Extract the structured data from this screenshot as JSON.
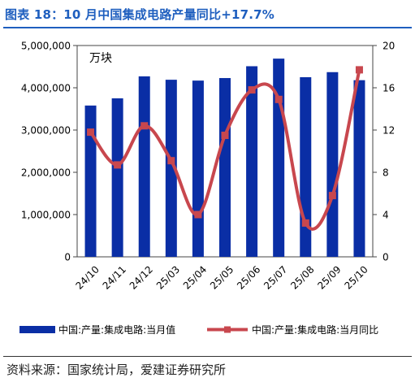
{
  "header": {
    "title": "图表 18：10 月中国集成电路产量同比+17.7%"
  },
  "footer": {
    "source": "资料来源：国家统计局，爱建证券研究所"
  },
  "colors": {
    "bar": "#0a2ea5",
    "line": "#c8474e",
    "title": "#1f5fbf"
  },
  "chart_data": {
    "type": "bar",
    "title": "",
    "unit_label": "万块",
    "categories": [
      "24/10",
      "24/11",
      "24/12",
      "25/03",
      "25/04",
      "25/05",
      "25/06",
      "25/07",
      "25/08",
      "25/09",
      "25/10"
    ],
    "series": [
      {
        "name": "中国:产量:集成电路:当月值",
        "type": "bar",
        "axis": "left",
        "values": [
          3580000,
          3750000,
          4270000,
          4190000,
          4170000,
          4230000,
          4510000,
          4690000,
          4250000,
          4370000,
          4180000
        ]
      },
      {
        "name": "中国:产量:集成电路:当月同比",
        "type": "line",
        "axis": "right",
        "smooth": true,
        "marker": "square",
        "values": [
          11.8,
          8.7,
          12.4,
          9.1,
          4.0,
          11.5,
          15.8,
          14.9,
          3.2,
          5.8,
          17.7
        ]
      }
    ],
    "y_left": {
      "min": 0,
      "max": 5000000,
      "ticks": [
        "0",
        "1,000,000",
        "2,000,000",
        "3,000,000",
        "4,000,000",
        "5,000,000"
      ]
    },
    "y_right": {
      "min": 0,
      "max": 20,
      "ticks": [
        "0",
        "4",
        "8",
        "12",
        "16",
        "20"
      ]
    },
    "grid": false,
    "legend_position": "bottom"
  }
}
